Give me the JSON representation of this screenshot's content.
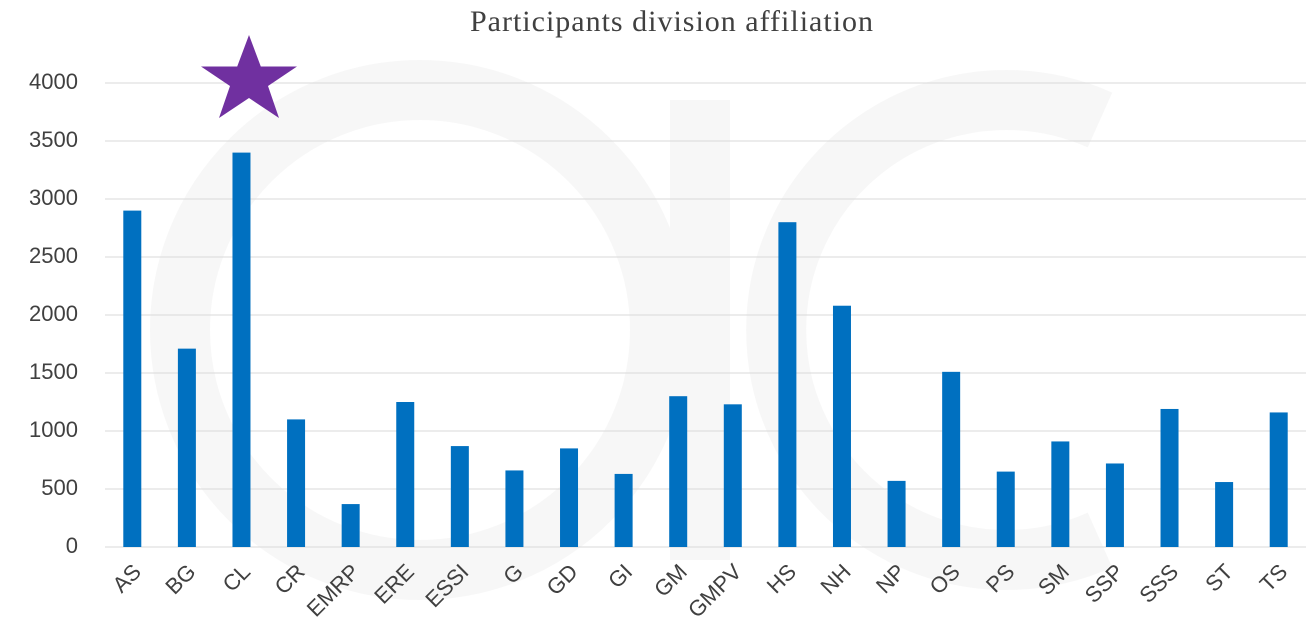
{
  "chart_data": {
    "type": "bar",
    "title": "Participants division affiliation",
    "categories": [
      "AS",
      "BG",
      "CL",
      "CR",
      "EMRP",
      "ERE",
      "ESSI",
      "G",
      "GD",
      "GI",
      "GM",
      "GMPV",
      "HS",
      "NH",
      "NP",
      "OS",
      "PS",
      "SM",
      "SSP",
      "SSS",
      "ST",
      "TS"
    ],
    "values": [
      2900,
      1710,
      3400,
      1100,
      370,
      1250,
      870,
      660,
      850,
      630,
      1300,
      1230,
      2800,
      2080,
      570,
      1510,
      650,
      910,
      720,
      1190,
      560,
      1160
    ],
    "color": "#0070c0",
    "ylim": [
      0,
      4000
    ],
    "yticks": [
      0,
      500,
      1000,
      1500,
      2000,
      2500,
      3000,
      3500,
      4000
    ],
    "grid": true
  }
}
